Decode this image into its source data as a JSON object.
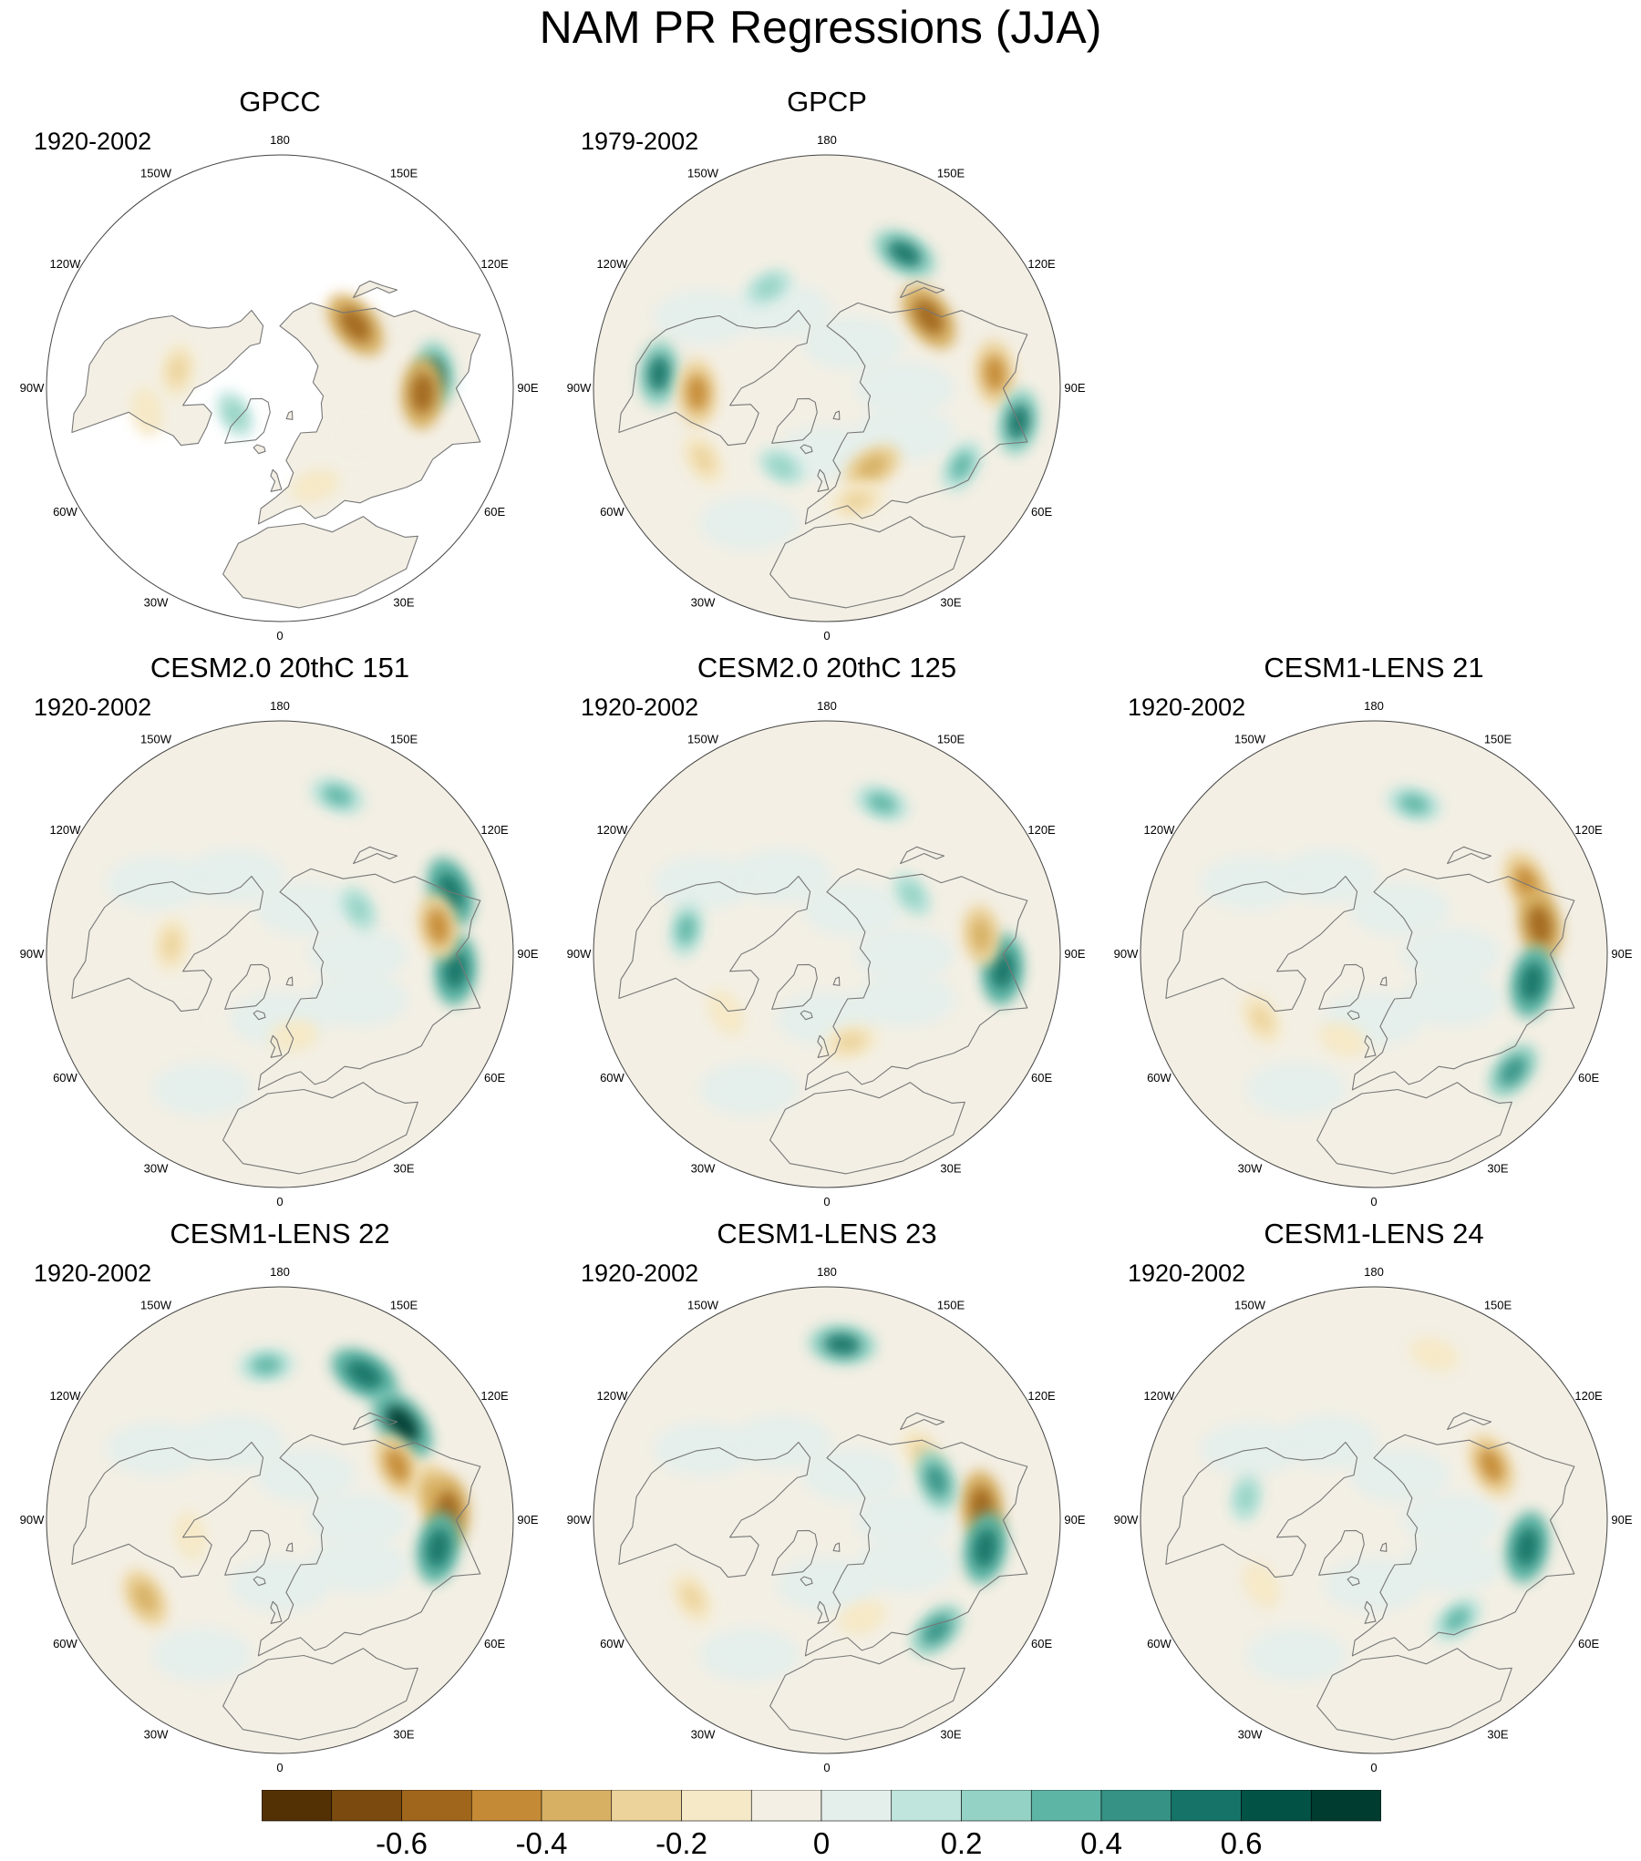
{
  "figure": {
    "title": "NAM PR Regressions (JJA)"
  },
  "panels": [
    {
      "title": "GPCC",
      "period": "1920-2002",
      "masked": true,
      "anomalies": [
        {
          "lon": -100,
          "lat": 50,
          "value": -0.3
        },
        {
          "lon": -80,
          "lat": 38,
          "value": -0.2
        },
        {
          "lon": 95,
          "lat": 30,
          "value": 0.5
        },
        {
          "lon": 88,
          "lat": 35,
          "value": -0.6
        },
        {
          "lon": 130,
          "lat": 52,
          "value": -0.6
        },
        {
          "lon": 20,
          "lat": 50,
          "value": -0.2
        },
        {
          "lon": 60,
          "lat": 55,
          "value": -0.1
        },
        {
          "lon": -60,
          "lat": 70,
          "value": 0.2
        }
      ]
    },
    {
      "title": "GPCP",
      "period": "1979-2002",
      "masked": false,
      "anomalies": [
        {
          "lon": 150,
          "lat": 30,
          "value": 0.5
        },
        {
          "lon": 125,
          "lat": 42,
          "value": -0.6
        },
        {
          "lon": 95,
          "lat": 25,
          "value": -0.5
        },
        {
          "lon": 80,
          "lat": 15,
          "value": 0.5
        },
        {
          "lon": -95,
          "lat": 25,
          "value": 0.5
        },
        {
          "lon": -88,
          "lat": 40,
          "value": -0.5
        },
        {
          "lon": 30,
          "lat": 55,
          "value": -0.4
        },
        {
          "lon": 15,
          "lat": 45,
          "value": -0.3
        },
        {
          "lon": -60,
          "lat": 35,
          "value": -0.3
        },
        {
          "lon": -150,
          "lat": 45,
          "value": 0.2
        },
        {
          "lon": 60,
          "lat": 30,
          "value": 0.3
        },
        {
          "lon": -30,
          "lat": 55,
          "value": 0.2
        }
      ]
    },
    {
      "title": "CESM2.0 20thC 151",
      "period": "1920-2002",
      "masked": false,
      "anomalies": [
        {
          "lon": 110,
          "lat": 20,
          "value": 0.6
        },
        {
          "lon": 85,
          "lat": 22,
          "value": 0.6
        },
        {
          "lon": 100,
          "lat": 28,
          "value": -0.5
        },
        {
          "lon": -95,
          "lat": 48,
          "value": -0.3
        },
        {
          "lon": 10,
          "lat": 58,
          "value": -0.2
        },
        {
          "lon": 160,
          "lat": 25,
          "value": 0.3
        },
        {
          "lon": -60,
          "lat": 45,
          "value": -0.1
        },
        {
          "lon": 120,
          "lat": 55,
          "value": 0.2
        }
      ]
    },
    {
      "title": "CESM2.0 20thC 125",
      "period": "1920-2002",
      "masked": false,
      "anomalies": [
        {
          "lon": 85,
          "lat": 22,
          "value": 0.6
        },
        {
          "lon": 97,
          "lat": 30,
          "value": -0.4
        },
        {
          "lon": 160,
          "lat": 28,
          "value": 0.3
        },
        {
          "lon": -60,
          "lat": 45,
          "value": -0.2
        },
        {
          "lon": 15,
          "lat": 55,
          "value": -0.3
        },
        {
          "lon": -100,
          "lat": 35,
          "value": 0.3
        },
        {
          "lon": 125,
          "lat": 50,
          "value": 0.2
        }
      ]
    },
    {
      "title": "CESM1-LENS 21",
      "period": "1920-2002",
      "masked": false,
      "anomalies": [
        {
          "lon": 115,
          "lat": 25,
          "value": -0.5
        },
        {
          "lon": 100,
          "lat": 25,
          "value": -0.6
        },
        {
          "lon": 80,
          "lat": 28,
          "value": 0.6
        },
        {
          "lon": 165,
          "lat": 30,
          "value": 0.3
        },
        {
          "lon": -60,
          "lat": 40,
          "value": -0.3
        },
        {
          "lon": -20,
          "lat": 55,
          "value": -0.2
        },
        {
          "lon": 50,
          "lat": 20,
          "value": 0.4
        }
      ]
    },
    {
      "title": "CESM1-LENS 22",
      "period": "1920-2002",
      "masked": false,
      "anomalies": [
        {
          "lon": 150,
          "lat": 25,
          "value": 0.6
        },
        {
          "lon": 128,
          "lat": 30,
          "value": 0.7
        },
        {
          "lon": 115,
          "lat": 40,
          "value": -0.5
        },
        {
          "lon": 100,
          "lat": 30,
          "value": -0.4
        },
        {
          "lon": 93,
          "lat": 25,
          "value": -0.6
        },
        {
          "lon": 80,
          "lat": 28,
          "value": 0.6
        },
        {
          "lon": -60,
          "lat": 30,
          "value": -0.4
        },
        {
          "lon": -175,
          "lat": 30,
          "value": 0.3
        },
        {
          "lon": -80,
          "lat": 55,
          "value": -0.2
        }
      ]
    },
    {
      "title": "CESM1-LENS 23",
      "period": "1920-2002",
      "masked": false,
      "anomalies": [
        {
          "lon": 175,
          "lat": 22,
          "value": 0.5
        },
        {
          "lon": 95,
          "lat": 30,
          "value": -0.6
        },
        {
          "lon": 80,
          "lat": 28,
          "value": 0.6
        },
        {
          "lon": 125,
          "lat": 45,
          "value": -0.3
        },
        {
          "lon": 110,
          "lat": 45,
          "value": 0.4
        },
        {
          "lon": -60,
          "lat": 30,
          "value": -0.3
        },
        {
          "lon": 20,
          "lat": 50,
          "value": -0.2
        },
        {
          "lon": 45,
          "lat": 30,
          "value": 0.4
        }
      ]
    },
    {
      "title": "CESM1-LENS 24",
      "period": "1920-2002",
      "masked": false,
      "anomalies": [
        {
          "lon": 115,
          "lat": 40,
          "value": -0.5
        },
        {
          "lon": 80,
          "lat": 30,
          "value": 0.6
        },
        {
          "lon": 160,
          "lat": 22,
          "value": -0.2
        },
        {
          "lon": -60,
          "lat": 40,
          "value": -0.2
        },
        {
          "lon": 40,
          "lat": 40,
          "value": 0.3
        },
        {
          "lon": -100,
          "lat": 40,
          "value": 0.2
        }
      ]
    }
  ],
  "longitude_labels": [
    "180",
    "150E",
    "120E",
    "90E",
    "60E",
    "30E",
    "0",
    "30W",
    "60W",
    "90W",
    "120W",
    "150W"
  ],
  "colorbar": {
    "colors": [
      "#543005",
      "#7a4a0e",
      "#a0661c",
      "#c58a35",
      "#d7b064",
      "#ecd39c",
      "#f6e9c8",
      "#f3efe4",
      "#e4efec",
      "#bfe5dd",
      "#93d2c4",
      "#5db5a6",
      "#359285",
      "#157467",
      "#035246",
      "#003c30"
    ],
    "tick_labels": [
      "-0.6",
      "-0.4",
      "-0.2",
      "0",
      "0.2",
      "0.4",
      "0.6"
    ]
  }
}
